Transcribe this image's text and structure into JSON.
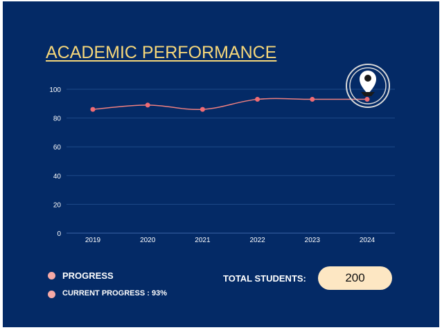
{
  "title": "ACADEMIC PERFORMANCE",
  "legend": {
    "progress_label": "PROGRESS",
    "current_progress_label": "CURRENT PROGRESS : 93%"
  },
  "total_students": {
    "label": "TOTAL STUDENTS:",
    "value": "200"
  },
  "icons": {
    "marker": "map-pin-icon"
  },
  "colors": {
    "background": "#042a66",
    "title": "#f6d77a",
    "line": "#f08080",
    "point": "#f06b73",
    "legend_dot": "#f6a9a6",
    "pill": "#fde7c3",
    "grid": "#1e4a8a"
  },
  "chart_data": {
    "type": "line",
    "x": [
      "2019",
      "2020",
      "2021",
      "2022",
      "2023",
      "2024"
    ],
    "series": [
      {
        "name": "PROGRESS",
        "values": [
          86,
          89,
          86,
          93,
          93,
          93
        ]
      }
    ],
    "yticks": [
      0,
      20,
      40,
      60,
      80,
      100
    ],
    "ylim": [
      0,
      100
    ],
    "grid": true,
    "legend": "bottom-left"
  }
}
